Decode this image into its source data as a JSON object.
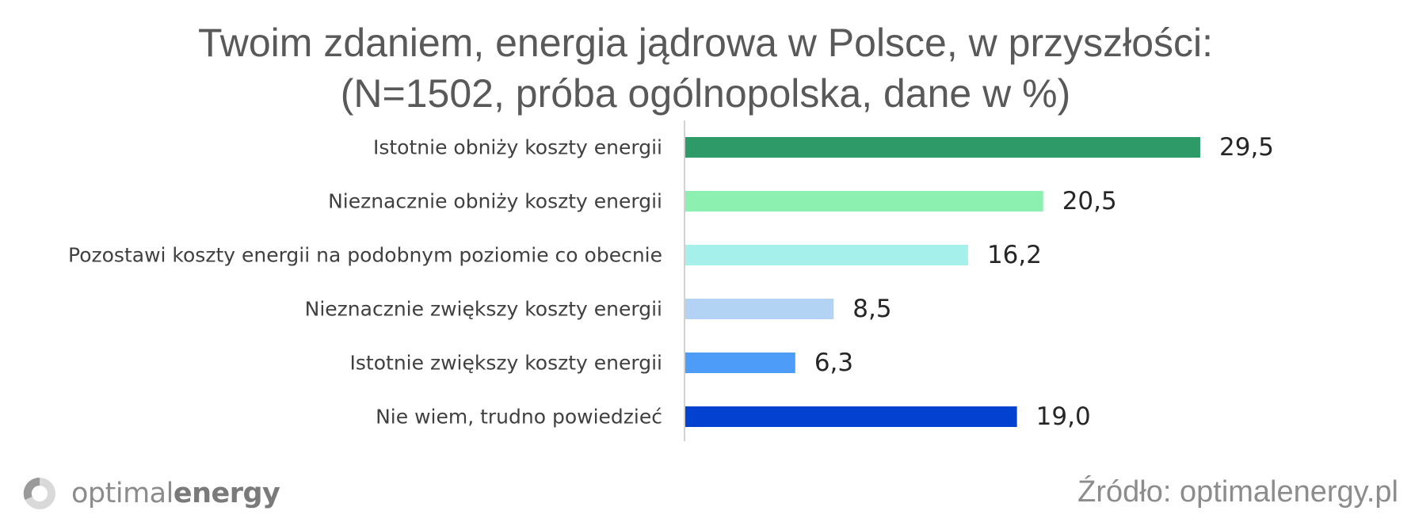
{
  "chart_data": {
    "type": "bar",
    "orientation": "horizontal",
    "title": [
      "Twoim zdaniem, energia jądrowa w Polsce, w przyszłości:",
      "(N=1502, próba ogólnopolska, dane w %)"
    ],
    "categories": [
      "Istotnie obniży koszty energii",
      "Nieznacznie obniży koszty energii",
      "Pozostawi koszty energii na podobnym poziomie co obecnie",
      "Nieznacznie zwiększy koszty energii",
      "Istotnie zwiększy koszty energii",
      "Nie wiem, trudno powiedzieć"
    ],
    "values": [
      29.5,
      20.5,
      16.2,
      8.5,
      6.3,
      19.0
    ],
    "value_labels": [
      "29,5",
      "20,5",
      "16,2",
      "8,5",
      "6,3",
      "19,0"
    ],
    "bar_colors": [
      "#2e9a68",
      "#8cf0b0",
      "#a5f0ea",
      "#b3d3f5",
      "#4d9cf8",
      "#0342d1"
    ],
    "xlim": [
      0,
      33
    ],
    "grid": false,
    "legend": "none"
  },
  "logo": {
    "light": "optimal",
    "bold": "energy"
  },
  "source": "Źródło: optimalenergy.pl"
}
